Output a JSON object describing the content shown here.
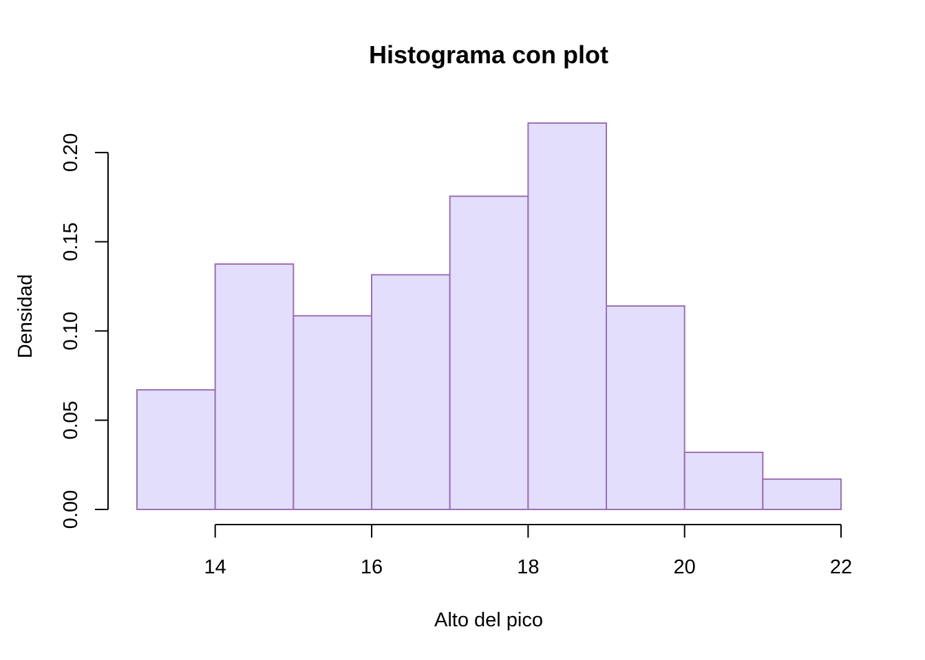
{
  "chart_data": {
    "type": "bar",
    "subtype": "histogram",
    "title": "Histograma con plot",
    "xlabel": "Alto del pico",
    "ylabel": "Densidad",
    "bins": [
      {
        "from": 13,
        "to": 14,
        "density": 0.067
      },
      {
        "from": 14,
        "to": 15,
        "density": 0.1375
      },
      {
        "from": 15,
        "to": 16,
        "density": 0.1085
      },
      {
        "from": 16,
        "to": 17,
        "density": 0.1315
      },
      {
        "from": 17,
        "to": 18,
        "density": 0.1755
      },
      {
        "from": 18,
        "to": 19,
        "density": 0.2165
      },
      {
        "from": 19,
        "to": 20,
        "density": 0.114
      },
      {
        "from": 20,
        "to": 21,
        "density": 0.032
      },
      {
        "from": 21,
        "to": 22,
        "density": 0.017
      }
    ],
    "xlim": [
      13,
      22
    ],
    "ylim": [
      0,
      0.2165
    ],
    "x_ticks": [
      14,
      16,
      18,
      20,
      22
    ],
    "x_tick_labels": [
      "14",
      "16",
      "18",
      "20",
      "22"
    ],
    "y_ticks": [
      0,
      0.05,
      0.1,
      0.15,
      0.2
    ],
    "y_tick_labels": [
      "0.00",
      "0.05",
      "0.10",
      "0.15",
      "0.20"
    ],
    "grid": false,
    "legend": "none",
    "colors": {
      "bar_fill": "#E2DEFB",
      "bar_border": "#9B6FB2"
    }
  }
}
